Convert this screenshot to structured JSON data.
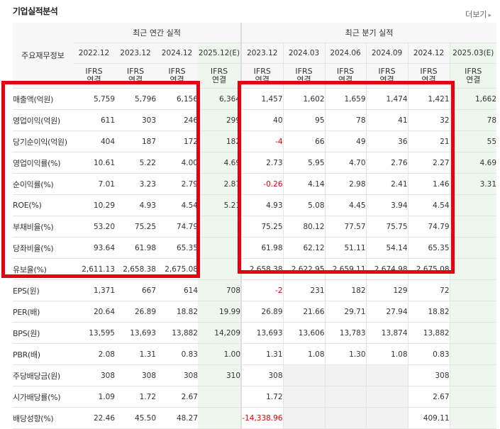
{
  "section_title": "기업실적분석",
  "more_link": "더보기",
  "header": {
    "row_label": "주요재무정보",
    "annual_title": "최근 연간 실적",
    "quarterly_title": "최근 분기 실적",
    "annual_periods": [
      "2022.12",
      "2023.12",
      "2024.12",
      "2025.12(E)"
    ],
    "quarterly_periods": [
      "2023.12",
      "2024.03",
      "2024.06",
      "2024.09",
      "2024.12",
      "2025.03(E)"
    ],
    "ifrs_line1": "IFRS",
    "ifrs_line2": "연결"
  },
  "rows": [
    {
      "label": "매출액(억원)",
      "annual": [
        "5,759",
        "5,796",
        "6,156",
        "6,364"
      ],
      "quarterly": [
        "1,457",
        "1,602",
        "1,659",
        "1,474",
        "1,421",
        "1,662"
      ]
    },
    {
      "label": "영업이익(억원)",
      "annual": [
        "611",
        "303",
        "246",
        "299"
      ],
      "quarterly": [
        "40",
        "95",
        "78",
        "41",
        "32",
        "78"
      ]
    },
    {
      "label": "당기순이익(억원)",
      "annual": [
        "404",
        "187",
        "172",
        "182"
      ],
      "quarterly": [
        "-4",
        "66",
        "49",
        "36",
        "21",
        "55"
      ]
    },
    {
      "label": "영업이익률(%)",
      "annual": [
        "10.61",
        "5.22",
        "4.00",
        "4.69"
      ],
      "quarterly": [
        "2.73",
        "5.95",
        "4.70",
        "2.76",
        "2.27",
        "4.69"
      ]
    },
    {
      "label": "순이익률(%)",
      "annual": [
        "7.01",
        "3.23",
        "2.79",
        "2.87"
      ],
      "quarterly": [
        "-0.26",
        "4.14",
        "2.98",
        "2.41",
        "1.46",
        "3.31"
      ]
    },
    {
      "label": "ROE(%)",
      "annual": [
        "10.29",
        "4.93",
        "4.54",
        "5.21"
      ],
      "quarterly": [
        "4.93",
        "5.08",
        "4.45",
        "3.94",
        "4.54",
        ""
      ]
    },
    {
      "label": "부채비율(%)",
      "annual": [
        "53.20",
        "75.25",
        "74.79",
        ""
      ],
      "quarterly": [
        "75.25",
        "80.12",
        "77.57",
        "75.75",
        "74.79",
        ""
      ]
    },
    {
      "label": "당좌비율(%)",
      "annual": [
        "93.64",
        "61.98",
        "65.35",
        ""
      ],
      "quarterly": [
        "61.98",
        "62.12",
        "51.11",
        "54.14",
        "65.35",
        ""
      ]
    },
    {
      "label": "유보율(%)",
      "annual": [
        "2,611.13",
        "2,658.38",
        "2,675.08",
        ""
      ],
      "quarterly": [
        "2,658.38",
        "2,622.95",
        "2,659.11",
        "2,674.98",
        "2,675.08",
        ""
      ]
    },
    {
      "label": "EPS(원)",
      "annual": [
        "1,371",
        "667",
        "614",
        "708"
      ],
      "quarterly": [
        "-2",
        "231",
        "182",
        "129",
        "72",
        ""
      ]
    },
    {
      "label": "PER(배)",
      "annual": [
        "20.64",
        "26.89",
        "18.82",
        "19.99"
      ],
      "quarterly": [
        "26.89",
        "21.66",
        "29.71",
        "27.94",
        "18.82",
        ""
      ]
    },
    {
      "label": "BPS(원)",
      "annual": [
        "13,595",
        "13,693",
        "13,882",
        "14,209"
      ],
      "quarterly": [
        "13,693",
        "13,606",
        "13,783",
        "13,874",
        "13,882",
        ""
      ]
    },
    {
      "label": "PBR(배)",
      "annual": [
        "2.08",
        "1.31",
        "0.83",
        "1.00"
      ],
      "quarterly": [
        "1.31",
        "1.08",
        "1.30",
        "1.08",
        "0.83",
        ""
      ]
    },
    {
      "label": "주당배당금(원)",
      "annual": [
        "308",
        "308",
        "308",
        "310"
      ],
      "quarterly": [
        "308",
        "",
        "",
        "",
        "308",
        ""
      ]
    },
    {
      "label": "시가배당률(%)",
      "annual": [
        "1.09",
        "1.72",
        "2.67",
        ""
      ],
      "quarterly": [
        "1.72",
        "",
        "",
        "",
        "2.67",
        ""
      ]
    },
    {
      "label": "배당성향(%)",
      "annual": [
        "22.46",
        "45.50",
        "48.27",
        ""
      ],
      "quarterly": [
        "-14,338.96",
        "",
        "",
        "",
        "409.11",
        ""
      ]
    }
  ],
  "colors": {
    "highlight_box": "#e60012",
    "ifrs_text": "#ff6600",
    "negative": "#e00000",
    "estimate_bg": "#eef7ee",
    "header_bg": "#f7f7f7"
  }
}
